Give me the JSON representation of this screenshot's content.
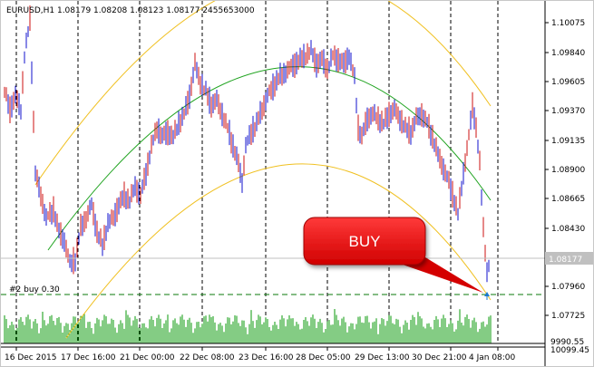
{
  "header": {
    "symbol_text": "EURUSD,H1  1.08179  1.08208  1.08123  1.08177  2455653000"
  },
  "price_axis": {
    "labels": [
      "1.10075",
      "1.09840",
      "1.09605",
      "1.09370",
      "1.09135",
      "1.08900",
      "1.08665",
      "1.08430",
      "1.08177",
      "1.07960",
      "1.07725"
    ],
    "current_price": "1.08177",
    "volume_top": "9990.55",
    "volume_bottom": "10099.45"
  },
  "time_axis": {
    "labels": [
      "16 Dec 2015",
      "17 Dec 16:00",
      "21 Dec 00:00",
      "22 Dec 08:00",
      "23 Dec 16:00",
      "28 Dec 05:00",
      "29 Dec 13:00",
      "30 Dec 21:00",
      "4 Jan 08:00"
    ]
  },
  "order": {
    "label": "#2 buy 0.30"
  },
  "callout": {
    "text": "BUY"
  },
  "colors": {
    "bull": "#1010cc",
    "bear": "#cc1010",
    "volume": "#0a9a0a",
    "regression_mid": "#1fa31f",
    "regression_band": "#f0c020",
    "order_line": "#0a7a0a",
    "callout_red": "#e00000",
    "arrow": "#1a78d0"
  },
  "icons": {
    "buy_arrow": "up-arrow-icon"
  }
}
